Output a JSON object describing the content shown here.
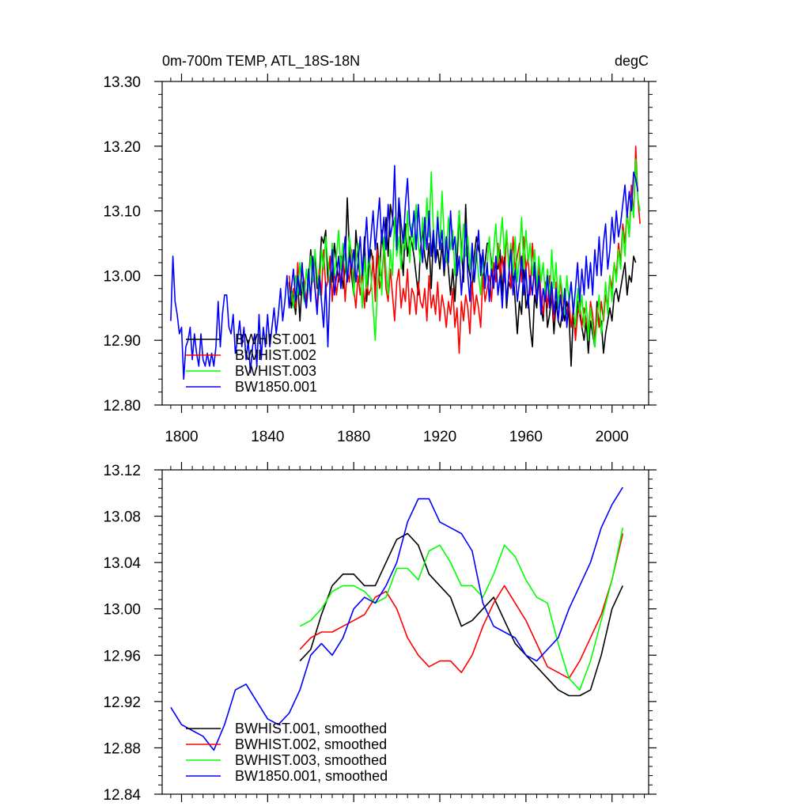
{
  "chart_data": [
    {
      "type": "line",
      "title": "0m-700m TEMP, ATL_18S-18N",
      "units": "degC",
      "xlim": [
        1791,
        2017
      ],
      "ylim": [
        12.8,
        13.3
      ],
      "xticks": [
        1800,
        1840,
        1880,
        1920,
        1960,
        2000
      ],
      "xtick_labels": [
        "1800",
        "1840",
        "1880",
        "1920",
        "1960",
        "2000"
      ],
      "yticks": [
        12.8,
        12.9,
        13.0,
        13.1,
        13.2,
        13.3
      ],
      "ytick_labels": [
        "12.80",
        "12.90",
        "13.00",
        "13.10",
        "13.20",
        "13.30"
      ],
      "legend_position": "bottom-left",
      "series": [
        {
          "name": "BWHIST.001",
          "color": "#000000",
          "x_start": 1850,
          "values": [
            12.99,
            12.95,
            12.97,
            12.94,
            12.99,
            12.93,
            12.99,
            12.97,
            12.95,
            12.99,
            13.04,
            13.0,
            13.03,
            12.98,
            13.0,
            13.06,
            13.05,
            13.07,
            12.99,
            13.03,
            12.99,
            13.05,
            13.02,
            12.99,
            13.03,
            12.98,
            13.01,
            13.12,
            13.04,
            13.0,
            12.97,
            13.07,
            13.03,
            12.99,
            13.0,
            13.06,
            12.96,
            13.01,
            13.04,
            13.02,
            12.98,
            13.05,
            13.0,
            13.07,
            13.03,
            13.09,
            13.03,
            13.11,
            13.09,
            13.07,
            13.06,
            13.11,
            13.04,
            13.0,
            13.08,
            13.03,
            13.06,
            13.05,
            13.03,
            13.0,
            12.97,
            13.04,
            13.07,
            13.03,
            13.01,
            13.05,
            12.98,
            13.06,
            13.02,
            13.04,
            13.01,
            13.05,
            13.0,
            13.05,
            13.01,
            12.97,
            13.01,
            12.96,
            13.02,
            13.1,
            13.04,
            12.99,
            13.11,
            13.02,
            13.0,
            12.98,
            13.03,
            13.06,
            13.04,
            13.03,
            12.99,
            13.02,
            13.05,
            13.05,
            13.02,
            12.99,
            13.02,
            13.01,
            13.04,
            12.97,
            13.03,
            12.95,
            12.99,
            12.98,
            13.01,
            12.96,
            12.91,
            12.96,
            12.94,
            13.02,
            12.95,
            12.97,
            12.92,
            12.89,
            12.97,
            12.95,
            13.0,
            12.95,
            12.93,
            12.99,
            12.92,
            12.94,
            12.97,
            12.91,
            12.96,
            12.93,
            12.92,
            12.95,
            12.93,
            12.96,
            12.94,
            12.86,
            12.94,
            12.91,
            12.96,
            12.94,
            12.92,
            12.9,
            12.93,
            12.88,
            12.93,
            12.91,
            12.89,
            12.96,
            12.92,
            12.93,
            12.88,
            12.91,
            12.93,
            12.95,
            12.93,
            12.97,
            12.98,
            12.96,
            12.98,
            13.0,
            13.02,
            12.97,
            13.0,
            12.99,
            13.03,
            13.02
          ]
        },
        {
          "name": "BWHIST.002",
          "color": "#ff0000",
          "x_start": 1850,
          "values": [
            13.0,
            12.96,
            12.98,
            12.95,
            13.02,
            12.97,
            13.01,
            12.99,
            12.96,
            13.0,
            12.97,
            13.01,
            12.98,
            12.95,
            13.01,
            12.97,
            13.04,
            12.98,
            12.99,
            13.03,
            12.96,
            13.01,
            12.97,
            13.0,
            12.99,
            13.03,
            12.96,
            13.01,
            12.99,
            13.04,
            12.98,
            12.95,
            13.0,
            12.97,
            13.01,
            12.95,
            12.99,
            12.97,
            12.98,
            13.03,
            12.96,
            13.04,
            12.98,
            13.0,
            13.04,
            12.98,
            12.96,
            13.01,
            12.97,
            12.93,
            12.99,
            13.01,
            12.95,
            12.98,
            12.96,
            13.01,
            12.94,
            12.98,
            12.97,
            12.94,
            12.99,
            12.96,
            12.95,
            12.98,
            12.93,
            13.0,
            12.95,
            12.97,
            12.94,
            12.99,
            12.93,
            12.97,
            12.95,
            12.92,
            12.96,
            12.94,
            12.98,
            12.92,
            12.95,
            12.88,
            12.96,
            12.93,
            12.97,
            12.95,
            12.91,
            12.99,
            12.94,
            12.97,
            12.95,
            12.92,
            13.0,
            12.96,
            12.98,
            13.0,
            12.96,
            13.02,
            12.99,
            13.05,
            13.0,
            13.03,
            12.99,
            13.07,
            13.02,
            12.98,
            13.06,
            13.01,
            13.03,
            13.05,
            12.99,
            13.06,
            13.01,
            13.03,
            12.97,
            13.05,
            13.0,
            12.96,
            13.02,
            12.97,
            12.94,
            12.99,
            12.95,
            13.0,
            12.97,
            12.93,
            12.99,
            12.95,
            13.0,
            12.93,
            12.97,
            12.94,
            12.96,
            12.92,
            12.95,
            12.9,
            12.94,
            12.96,
            12.92,
            12.95,
            12.93,
            12.91,
            12.96,
            12.94,
            12.9,
            12.95,
            12.92,
            12.96,
            12.93,
            12.97,
            12.95,
            13.0,
            12.98,
            13.02,
            13.0,
            13.05,
            13.02,
            13.08,
            13.05,
            13.1,
            13.06,
            13.14,
            13.09,
            13.2,
            13.12,
            13.08
          ]
        },
        {
          "name": "BWHIST.003",
          "color": "#00ff00",
          "x_start": 1850,
          "values": [
            12.96,
            12.98,
            12.95,
            13.0,
            12.97,
            13.02,
            12.98,
            12.96,
            13.01,
            12.98,
            13.03,
            12.99,
            13.04,
            13.0,
            12.97,
            13.04,
            13.01,
            13.06,
            13.02,
            12.98,
            13.05,
            13.0,
            13.03,
            13.07,
            13.01,
            13.05,
            13.02,
            12.99,
            13.06,
            13.03,
            12.97,
            13.02,
            13.05,
            13.0,
            12.95,
            13.03,
            12.98,
            13.04,
            13.0,
            12.95,
            12.9,
            12.98,
            13.03,
            12.97,
            13.06,
            13.01,
            12.97,
            13.04,
            13.0,
            13.09,
            13.03,
            13.06,
            13.01,
            13.07,
            13.04,
            13.1,
            13.02,
            13.08,
            13.04,
            13.11,
            13.05,
            13.02,
            13.09,
            13.04,
            13.12,
            13.06,
            13.16,
            13.07,
            13.03,
            13.1,
            13.04,
            13.13,
            13.06,
            13.02,
            13.09,
            13.04,
            13.07,
            13.0,
            13.05,
            13.1,
            13.02,
            13.08,
            13.03,
            13.06,
            13.01,
            13.05,
            12.99,
            13.04,
            13.0,
            12.97,
            13.03,
            12.99,
            13.02,
            13.06,
            13.0,
            13.04,
            13.08,
            13.02,
            13.05,
            13.09,
            13.03,
            13.07,
            13.01,
            13.05,
            13.0,
            13.06,
            12.99,
            13.03,
            13.09,
            13.01,
            13.07,
            13.02,
            13.05,
            13.0,
            13.04,
            12.98,
            13.03,
            12.99,
            13.02,
            12.97,
            13.01,
            12.96,
            13.04,
            12.98,
            13.02,
            12.95,
            13.0,
            12.97,
            12.94,
            13.0,
            12.96,
            12.99,
            12.95,
            12.92,
            12.98,
            12.94,
            12.97,
            12.92,
            12.96,
            12.9,
            12.95,
            12.92,
            12.89,
            12.93,
            12.97,
            12.91,
            12.94,
            12.99,
            12.94,
            13.0,
            12.96,
            13.02,
            12.99,
            13.04,
            13.01,
            13.07,
            13.03,
            13.1,
            13.06,
            13.12,
            13.09,
            13.18,
            13.12,
            13.1
          ]
        },
        {
          "name": "BW1850.001",
          "color": "#0000ff",
          "x_start": 1795,
          "values": [
            12.93,
            13.03,
            12.96,
            12.94,
            12.91,
            12.92,
            12.84,
            12.89,
            12.9,
            12.92,
            12.87,
            12.91,
            12.88,
            12.86,
            12.91,
            12.87,
            12.86,
            12.88,
            12.86,
            12.88,
            12.86,
            12.89,
            12.96,
            12.89,
            12.94,
            12.97,
            12.97,
            12.92,
            12.91,
            12.94,
            12.88,
            12.9,
            12.93,
            12.89,
            12.92,
            12.87,
            12.9,
            12.85,
            12.89,
            12.91,
            12.86,
            12.94,
            12.87,
            12.92,
            12.89,
            12.94,
            12.89,
            12.92,
            12.95,
            12.91,
            12.94,
            12.98,
            12.93,
            12.96,
            13.0,
            12.95,
            12.98,
            13.01,
            12.96,
            13.0,
            12.97,
            13.02,
            12.97,
            12.95,
            13.01,
            12.96,
            13.03,
            12.98,
            12.94,
            13.0,
            12.96,
            12.92,
            12.99,
            12.89,
            12.99,
            13.04,
            12.97,
            13.0,
            13.03,
            12.98,
            13.02,
            13.06,
            12.99,
            13.03,
            13.01,
            13.04,
            12.99,
            13.02,
            13.06,
            13.0,
            13.04,
            13.09,
            13.02,
            13.06,
            13.1,
            13.04,
            13.08,
            13.12,
            13.05,
            13.09,
            13.04,
            13.11,
            13.06,
            13.08,
            13.17,
            13.04,
            13.12,
            13.08,
            13.05,
            13.11,
            13.15,
            13.08,
            13.06,
            13.1,
            13.04,
            13.11,
            13.06,
            13.02,
            13.09,
            13.04,
            13.1,
            13.03,
            13.07,
            13.02,
            13.09,
            13.04,
            13.07,
            13.01,
            13.06,
            13.02,
            13.1,
            13.04,
            13.06,
            13.0,
            13.03,
            12.97,
            13.02,
            13.08,
            13.0,
            12.96,
            13.05,
            12.99,
            13.03,
            13.07,
            13.0,
            13.04,
            12.98,
            13.02,
            12.96,
            13.01,
            12.98,
            13.03,
            12.97,
            13.0,
            12.95,
            13.02,
            12.96,
            13.0,
            13.04,
            12.97,
            13.01,
            12.96,
            12.99,
            13.03,
            12.97,
            13.01,
            12.95,
            13.0,
            12.97,
            13.02,
            12.96,
            13.0,
            12.94,
            12.98,
            12.96,
            13.0,
            12.95,
            12.99,
            12.94,
            12.98,
            12.93,
            12.97,
            12.93,
            12.98,
            12.92,
            12.96,
            12.99,
            12.94,
            12.98,
            13.02,
            12.96,
            13.01,
            12.97,
            13.03,
            12.98,
            13.02,
            12.97,
            13.04,
            13.0,
            13.06,
            13.0,
            13.05,
            13.08,
            13.01,
            13.04,
            13.09,
            13.05,
            13.1,
            13.06,
            13.08,
            13.11,
            13.14,
            13.09,
            13.13,
            13.1,
            13.16,
            13.15,
            13.13
          ]
        }
      ]
    },
    {
      "type": "line",
      "title": "",
      "xlim": [
        1791,
        2017
      ],
      "ylim": [
        12.84,
        13.12
      ],
      "xticks": [
        1800,
        1840,
        1880,
        1920,
        1960,
        2000
      ],
      "xtick_labels": [],
      "yticks": [
        12.84,
        12.88,
        12.92,
        12.96,
        13.0,
        13.04,
        13.08,
        13.12
      ],
      "ytick_labels": [
        "12.84",
        "12.88",
        "12.92",
        "12.96",
        "13.00",
        "13.04",
        "13.08",
        "13.12"
      ],
      "legend_position": "bottom-left",
      "series": [
        {
          "name": "BWHIST.001, smoothed",
          "color": "#000000",
          "x_start": 1855,
          "x_step": 5,
          "values": [
            12.955,
            12.965,
            12.995,
            13.02,
            13.03,
            13.03,
            13.02,
            13.02,
            13.04,
            13.06,
            13.065,
            13.055,
            13.03,
            13.02,
            13.01,
            12.985,
            12.99,
            13.0,
            13.01,
            12.99,
            12.97,
            12.96,
            12.95,
            12.94,
            12.93,
            12.925,
            12.925,
            12.93,
            12.96,
            13.0,
            13.02
          ]
        },
        {
          "name": "BWHIST.002, smoothed",
          "color": "#ff0000",
          "x_start": 1855,
          "x_step": 5,
          "values": [
            12.965,
            12.975,
            12.98,
            12.98,
            12.985,
            12.99,
            12.995,
            13.01,
            13.015,
            13.0,
            12.975,
            12.96,
            12.95,
            12.955,
            12.955,
            12.945,
            12.96,
            12.985,
            13.005,
            13.02,
            13.005,
            12.99,
            12.97,
            12.95,
            12.945,
            12.94,
            12.955,
            12.975,
            12.995,
            13.025,
            13.065
          ]
        },
        {
          "name": "BWHIST.003, smoothed",
          "color": "#00ff00",
          "x_start": 1855,
          "x_step": 5,
          "values": [
            12.985,
            12.99,
            13.0,
            13.015,
            13.02,
            13.02,
            13.015,
            13.005,
            13.01,
            13.035,
            13.035,
            13.025,
            13.05,
            13.055,
            13.04,
            13.02,
            13.02,
            13.01,
            13.03,
            13.055,
            13.045,
            13.025,
            13.01,
            13.005,
            12.97,
            12.94,
            12.93,
            12.955,
            12.99,
            13.025,
            13.07
          ]
        },
        {
          "name": "BW1850.001, smoothed",
          "color": "#0000ff",
          "x_start": 1795,
          "x_step": 5,
          "values": [
            12.915,
            12.9,
            12.895,
            12.89,
            12.878,
            12.9,
            12.93,
            12.935,
            12.92,
            12.905,
            12.9,
            12.91,
            12.93,
            12.96,
            12.97,
            12.96,
            12.975,
            13.0,
            13.01,
            13.005,
            13.02,
            13.04,
            13.075,
            13.095,
            13.095,
            13.075,
            13.07,
            13.065,
            13.05,
            13.005,
            12.985,
            12.98,
            12.975,
            12.96,
            12.955,
            12.965,
            12.975,
            13.0,
            13.02,
            13.04,
            13.07,
            13.09,
            13.105
          ]
        }
      ]
    }
  ]
}
